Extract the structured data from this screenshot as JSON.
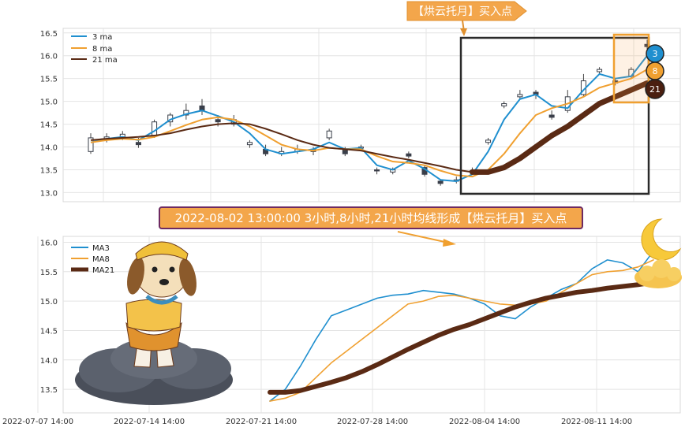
{
  "chart_data": [
    {
      "type": "line",
      "panel": "top",
      "subtype": "candlestick with moving averages",
      "yticks": [
        "16.5",
        "16.0",
        "15.5",
        "15.0",
        "14.5",
        "14.0",
        "13.5",
        "13.0"
      ],
      "ylim": [
        12.8,
        16.6
      ],
      "grid": true,
      "legend": {
        "placement": "top-left",
        "entries": [
          "3 ma",
          "8 ma",
          "21 ma"
        ]
      },
      "annotation_top": "【烘云托月】买入点",
      "badges": [
        "3",
        "8",
        "21"
      ],
      "candles": [
        {
          "x": 0.0,
          "o": 13.9,
          "c": 14.2,
          "h": 14.3,
          "l": 13.85
        },
        {
          "x": 1.0,
          "o": 14.15,
          "c": 14.22,
          "h": 14.3,
          "l": 14.1
        },
        {
          "x": 2.0,
          "o": 14.2,
          "c": 14.28,
          "h": 14.35,
          "l": 14.15
        },
        {
          "x": 3.0,
          "o": 14.1,
          "c": 14.05,
          "h": 14.2,
          "l": 13.98
        },
        {
          "x": 4.0,
          "o": 14.25,
          "c": 14.55,
          "h": 14.6,
          "l": 14.2
        },
        {
          "x": 5.0,
          "o": 14.55,
          "c": 14.7,
          "h": 14.75,
          "l": 14.45
        },
        {
          "x": 6.0,
          "o": 14.7,
          "c": 14.8,
          "h": 14.95,
          "l": 14.6
        },
        {
          "x": 7.0,
          "o": 14.9,
          "c": 14.8,
          "h": 15.05,
          "l": 14.7
        },
        {
          "x": 8.0,
          "o": 14.6,
          "c": 14.55,
          "h": 14.7,
          "l": 14.45
        },
        {
          "x": 9.0,
          "o": 14.5,
          "c": 14.6,
          "h": 14.7,
          "l": 14.45
        },
        {
          "x": 10.0,
          "o": 14.05,
          "c": 14.1,
          "h": 14.15,
          "l": 13.98
        },
        {
          "x": 11.0,
          "o": 13.95,
          "c": 13.85,
          "h": 14.05,
          "l": 13.8
        },
        {
          "x": 12.0,
          "o": 13.85,
          "c": 13.9,
          "h": 14.0,
          "l": 13.8
        },
        {
          "x": 13.0,
          "o": 13.9,
          "c": 13.95,
          "h": 14.05,
          "l": 13.85
        },
        {
          "x": 14.0,
          "o": 13.95,
          "c": 13.9,
          "h": 14.0,
          "l": 13.82
        },
        {
          "x": 15.0,
          "o": 14.2,
          "c": 14.35,
          "h": 14.4,
          "l": 14.15
        },
        {
          "x": 16.0,
          "o": 13.95,
          "c": 13.85,
          "h": 14.0,
          "l": 13.8
        },
        {
          "x": 17.0,
          "o": 14.0,
          "c": 14.0,
          "h": 14.05,
          "l": 13.95
        },
        {
          "x": 18.0,
          "o": 13.5,
          "c": 13.48,
          "h": 13.55,
          "l": 13.4
        },
        {
          "x": 19.0,
          "o": 13.45,
          "c": 13.5,
          "h": 13.55,
          "l": 13.4
        },
        {
          "x": 20.0,
          "o": 13.85,
          "c": 13.8,
          "h": 13.9,
          "l": 13.75
        },
        {
          "x": 21.0,
          "o": 13.55,
          "c": 13.4,
          "h": 13.6,
          "l": 13.35
        },
        {
          "x": 22.0,
          "o": 13.25,
          "c": 13.2,
          "h": 13.3,
          "l": 13.15
        },
        {
          "x": 23.0,
          "o": 13.25,
          "c": 13.28,
          "h": 13.35,
          "l": 13.2
        },
        {
          "x": 24.0,
          "o": 13.45,
          "c": 13.48,
          "h": 13.55,
          "l": 13.4
        },
        {
          "x": 25.0,
          "o": 14.1,
          "c": 14.15,
          "h": 14.2,
          "l": 14.05
        },
        {
          "x": 26.0,
          "o": 14.9,
          "c": 14.95,
          "h": 15.0,
          "l": 14.85
        },
        {
          "x": 27.0,
          "o": 15.1,
          "c": 15.15,
          "h": 15.25,
          "l": 15.05
        },
        {
          "x": 28.0,
          "o": 15.2,
          "c": 15.15,
          "h": 15.25,
          "l": 15.05
        },
        {
          "x": 29.0,
          "o": 14.7,
          "c": 14.65,
          "h": 14.8,
          "l": 14.6
        },
        {
          "x": 30.0,
          "o": 14.8,
          "c": 15.1,
          "h": 15.25,
          "l": 14.75
        },
        {
          "x": 31.0,
          "o": 15.15,
          "c": 15.45,
          "h": 15.6,
          "l": 15.1
        },
        {
          "x": 32.0,
          "o": 15.65,
          "c": 15.7,
          "h": 15.75,
          "l": 15.6
        },
        {
          "x": 33.0,
          "o": 15.45,
          "c": 15.4,
          "h": 15.5,
          "l": 15.35
        },
        {
          "x": 34.0,
          "o": 15.55,
          "c": 15.7,
          "h": 15.75,
          "l": 15.5
        },
        {
          "x": 35.0,
          "o": 16.25,
          "c": 16.2,
          "h": 16.35,
          "l": 16.15
        }
      ],
      "series": [
        {
          "name": "3 ma",
          "color": "#1f8fcf",
          "x": [
            0,
            1,
            2,
            3,
            4,
            5,
            6,
            7,
            8,
            9,
            10,
            11,
            12,
            13,
            14,
            15,
            16,
            17,
            18,
            19,
            20,
            21,
            22,
            23,
            24,
            25,
            26,
            27,
            28,
            29,
            30,
            31,
            32,
            33,
            34,
            35
          ],
          "values": [
            14.1,
            14.18,
            14.22,
            14.15,
            14.35,
            14.6,
            14.72,
            14.8,
            14.68,
            14.55,
            14.3,
            13.95,
            13.85,
            13.9,
            13.95,
            14.1,
            13.95,
            13.98,
            13.6,
            13.5,
            13.7,
            13.52,
            13.28,
            13.25,
            13.4,
            13.9,
            14.6,
            15.05,
            15.15,
            14.9,
            14.85,
            15.25,
            15.6,
            15.5,
            15.55,
            16.0
          ]
        },
        {
          "name": "8 ma",
          "color": "#f0a030",
          "x": [
            0,
            1,
            2,
            3,
            4,
            5,
            6,
            7,
            8,
            9,
            10,
            11,
            12,
            13,
            14,
            15,
            16,
            17,
            18,
            19,
            20,
            21,
            22,
            23,
            24,
            25,
            26,
            27,
            28,
            29,
            30,
            31,
            32,
            33,
            34,
            35
          ],
          "values": [
            14.1,
            14.15,
            14.18,
            14.16,
            14.22,
            14.35,
            14.48,
            14.6,
            14.65,
            14.6,
            14.45,
            14.25,
            14.05,
            13.95,
            13.92,
            13.98,
            13.95,
            13.95,
            13.8,
            13.68,
            13.65,
            13.6,
            13.48,
            13.38,
            13.35,
            13.5,
            13.85,
            14.3,
            14.7,
            14.85,
            14.95,
            15.1,
            15.3,
            15.4,
            15.5,
            15.7
          ]
        },
        {
          "name": "21 ma",
          "color": "#5a2a14",
          "x": [
            0,
            1,
            2,
            3,
            4,
            5,
            6,
            7,
            8,
            9,
            10,
            11,
            12,
            13,
            14,
            15,
            16,
            17,
            18,
            19,
            20,
            21,
            22,
            23,
            24,
            25,
            26,
            27,
            28,
            29,
            30,
            31,
            32,
            33,
            34,
            35
          ],
          "values": [
            14.15,
            14.18,
            14.2,
            14.22,
            14.25,
            14.3,
            14.38,
            14.45,
            14.5,
            14.52,
            14.5,
            14.4,
            14.28,
            14.15,
            14.05,
            13.98,
            13.95,
            13.92,
            13.85,
            13.78,
            13.72,
            13.65,
            13.58,
            13.5,
            13.45,
            13.45,
            13.55,
            13.75,
            14.0,
            14.25,
            14.45,
            14.7,
            14.95,
            15.1,
            15.25,
            15.4
          ]
        }
      ]
    },
    {
      "type": "line",
      "panel": "bottom",
      "title": "2022-08-02 13:00:00 3小时,8小时,21小时均线形成【烘云托月】买入点",
      "yticks": [
        "16.0",
        "15.5",
        "15.0",
        "14.5",
        "14.0",
        "13.5"
      ],
      "ylim": [
        13.1,
        16.1
      ],
      "xticks": [
        "2022-07-07 14:00",
        "2022-07-14 14:00",
        "2022-07-21 14:00",
        "2022-07-28 14:00",
        "2022-08-04 14:00",
        "2022-08-11 14:00"
      ],
      "grid": true,
      "legend": {
        "placement": "top-left",
        "entries": [
          "MA3",
          "MA8",
          "MA21"
        ]
      },
      "series": [
        {
          "name": "MA3",
          "color": "#1f8fcf",
          "x": [
            0,
            1,
            2,
            3,
            4,
            5,
            6,
            7,
            8,
            9,
            10,
            11,
            12,
            13,
            14,
            15,
            16,
            17,
            18,
            19,
            20,
            21,
            22,
            23,
            24,
            25
          ],
          "values": [
            13.3,
            13.5,
            13.9,
            14.35,
            14.75,
            14.85,
            14.95,
            15.05,
            15.1,
            15.12,
            15.18,
            15.15,
            15.12,
            15.05,
            14.95,
            14.75,
            14.7,
            14.9,
            15.05,
            15.2,
            15.3,
            15.55,
            15.7,
            15.65,
            15.5,
            15.85
          ]
        },
        {
          "name": "MA8",
          "color": "#f0a030",
          "x": [
            0,
            1,
            2,
            3,
            4,
            5,
            6,
            7,
            8,
            9,
            10,
            11,
            12,
            13,
            14,
            15,
            16,
            17,
            18,
            19,
            20,
            21,
            22,
            23,
            24,
            25
          ],
          "values": [
            13.3,
            13.35,
            13.45,
            13.7,
            13.95,
            14.15,
            14.35,
            14.55,
            14.75,
            14.95,
            15.0,
            15.08,
            15.1,
            15.05,
            15.0,
            14.95,
            14.93,
            14.95,
            15.0,
            15.15,
            15.3,
            15.45,
            15.5,
            15.52,
            15.58,
            15.7
          ]
        },
        {
          "name": "MA21",
          "color": "#5a2a14",
          "x": [
            0,
            1,
            2,
            3,
            4,
            5,
            6,
            7,
            8,
            9,
            10,
            11,
            12,
            13,
            14,
            15,
            16,
            17,
            18,
            19,
            20,
            21,
            22,
            23,
            24,
            25
          ],
          "values": [
            13.45,
            13.45,
            13.48,
            13.55,
            13.62,
            13.7,
            13.8,
            13.92,
            14.05,
            14.18,
            14.3,
            14.42,
            14.52,
            14.6,
            14.7,
            14.8,
            14.9,
            14.98,
            15.05,
            15.1,
            15.15,
            15.18,
            15.22,
            15.25,
            15.28,
            15.32
          ]
        }
      ]
    }
  ]
}
